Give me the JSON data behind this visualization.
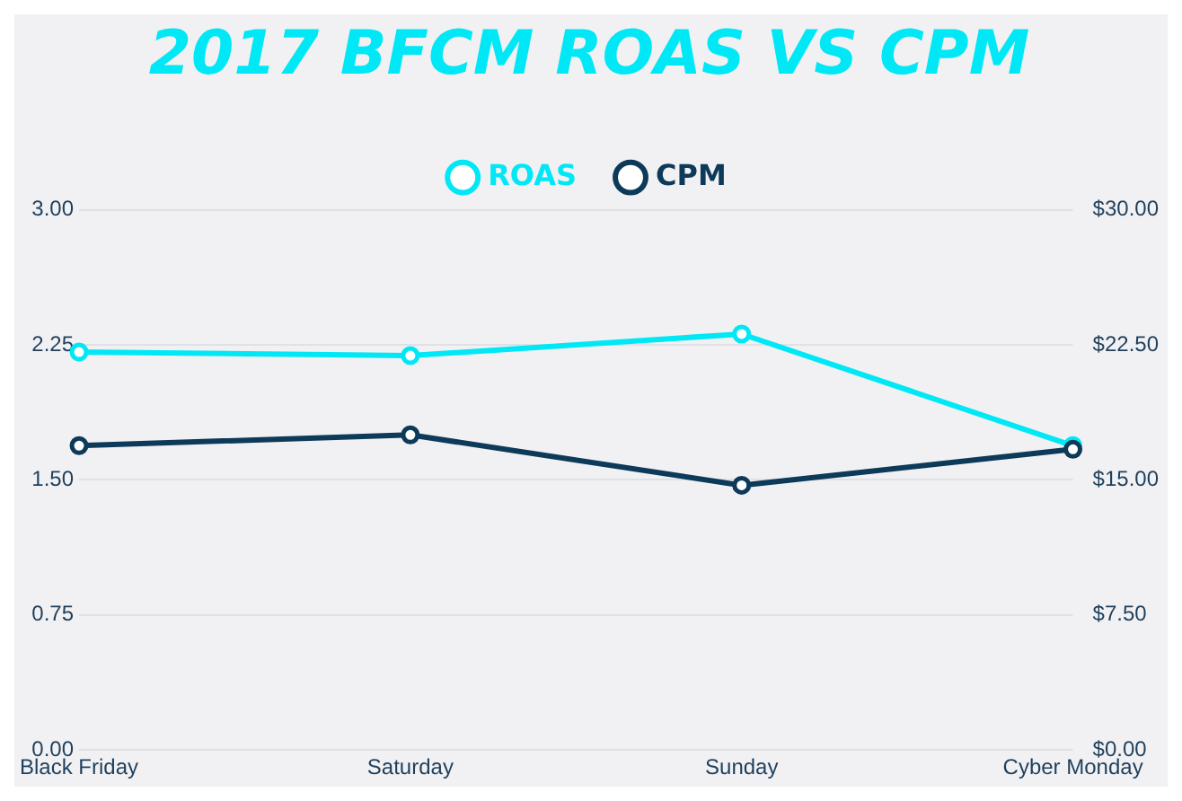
{
  "chart_data": {
    "type": "line",
    "title": "2017 BFCM ROAS VS CPM",
    "categories": [
      "Black Friday",
      "Saturday",
      "Sunday",
      "Cyber Monday"
    ],
    "series": [
      {
        "name": "ROAS",
        "color": "#00e8f5",
        "values": [
          2.21,
          2.19,
          2.31,
          1.69
        ]
      },
      {
        "name": "CPM",
        "color": "#0d3a58",
        "values": [
          16.9,
          17.5,
          14.7,
          16.7
        ],
        "axis": "y2"
      }
    ],
    "ylim": [
      0,
      3
    ],
    "yticks": [
      {
        "value": 0,
        "label": "0.00"
      },
      {
        "value": 0.75,
        "label": "0.75"
      },
      {
        "value": 1.5,
        "label": "1.50"
      },
      {
        "value": 2.25,
        "label": "2.25"
      },
      {
        "value": 3,
        "label": "3.00"
      }
    ],
    "y2lim": [
      0,
      30
    ],
    "y2ticks": [
      {
        "value": 0,
        "label": "$0.00"
      },
      {
        "value": 7.5,
        "label": "$7.50"
      },
      {
        "value": 15,
        "label": "$15.00"
      },
      {
        "value": 22.5,
        "label": "$22.50"
      },
      {
        "value": 30,
        "label": "$30.00"
      }
    ],
    "grid": "y",
    "legend": "top",
    "marker": "circle",
    "line_style": "solid"
  }
}
